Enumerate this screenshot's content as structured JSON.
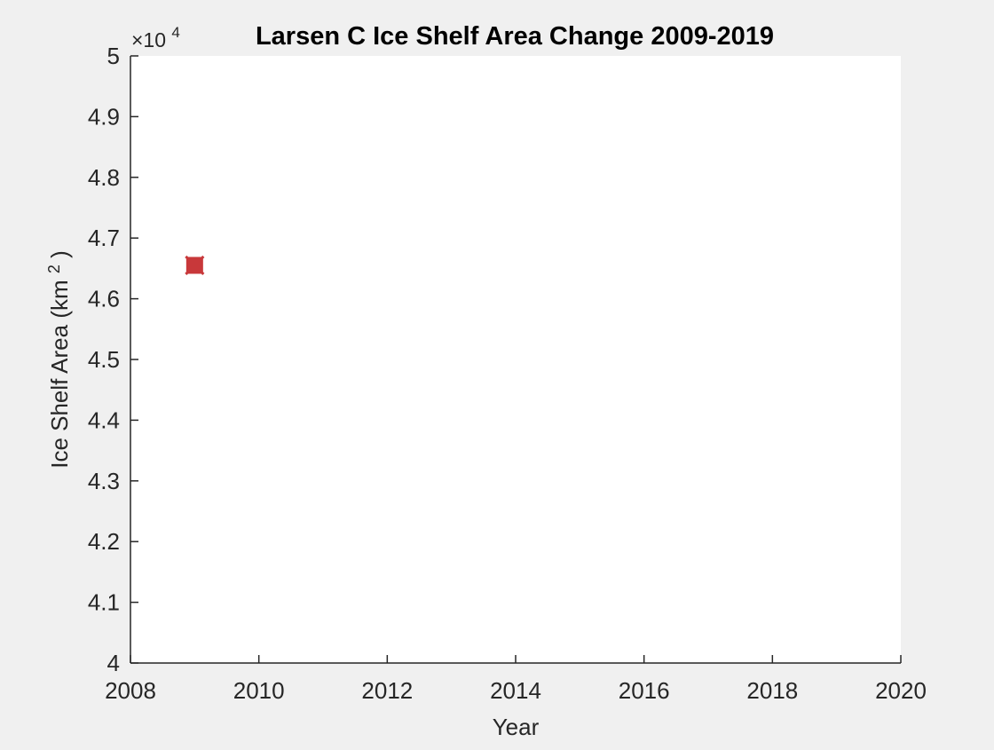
{
  "chart_data": {
    "type": "scatter",
    "title": "Larsen C Ice Shelf Area Change 2009-2019",
    "xlabel": "Year",
    "ylabel": {
      "text": "Ice Shelf Area (km",
      "superscript": "2",
      "suffix": ")"
    },
    "y_exponent": {
      "prefix": "×10",
      "power": "4"
    },
    "xlim": [
      2008,
      2020
    ],
    "ylim": [
      40000,
      50000
    ],
    "x_ticks": [
      2008,
      2010,
      2012,
      2014,
      2016,
      2018,
      2020
    ],
    "x_tick_labels": [
      "2008",
      "2010",
      "2012",
      "2014",
      "2016",
      "2018",
      "2020"
    ],
    "y_ticks": [
      40000,
      41000,
      42000,
      43000,
      44000,
      45000,
      46000,
      47000,
      48000,
      49000,
      50000
    ],
    "y_tick_labels": [
      "4",
      "4.1",
      "4.2",
      "4.3",
      "4.4",
      "4.5",
      "4.6",
      "4.7",
      "4.8",
      "4.9",
      "5"
    ],
    "grid": false,
    "series": [
      {
        "marker": "square-x",
        "color": "#c8383a",
        "points": [
          {
            "x": 2009,
            "y": 46550
          }
        ]
      }
    ]
  }
}
